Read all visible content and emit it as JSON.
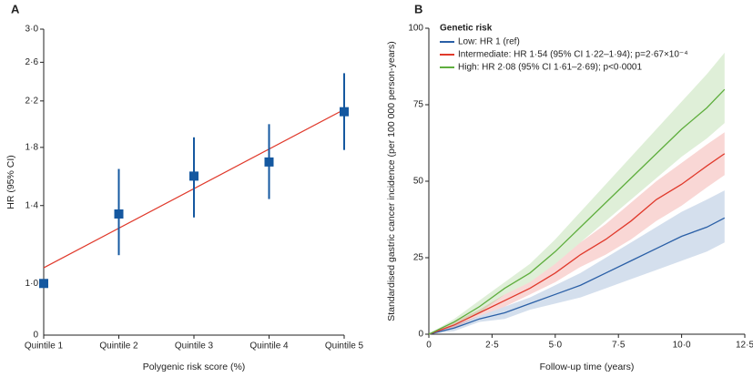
{
  "chart_data": [
    {
      "type": "errorbar",
      "panel_label": "A",
      "y_label": "HR (95% CI)",
      "x_label": "Polygenic risk score (%)",
      "categories": [
        "Quintile 1",
        "Quintile 2",
        "Quintile 3",
        "Quintile 4",
        "Quintile 5"
      ],
      "values": [
        1.0,
        1.35,
        1.59,
        1.69,
        2.1
      ],
      "lower": [
        null,
        1.13,
        1.33,
        1.44,
        1.78
      ],
      "upper": [
        null,
        1.64,
        1.88,
        1.99,
        2.48
      ],
      "color": "#1558a0",
      "trend": {
        "values": [
          1.07,
          2.12
        ],
        "color": "#e0392b"
      },
      "log_y": true,
      "ylim": [
        0.8,
        3.0
      ],
      "y_origin_label": "0",
      "yticks": [
        {
          "value": 1.0,
          "label": "1·0"
        },
        {
          "value": 1.4,
          "label": "1·4"
        },
        {
          "value": 1.8,
          "label": "1·8"
        },
        {
          "value": 2.2,
          "label": "2·2"
        },
        {
          "value": 2.6,
          "label": "2·6"
        },
        {
          "value": 3.0,
          "label": "3·0"
        }
      ]
    },
    {
      "type": "line",
      "panel_label": "B",
      "y_label": "Standardised gastric cancer incidence (per 100 000 person-years)",
      "x_label": "Follow-up time (years)",
      "legend_title": "Genetic risk",
      "legend": "upper left",
      "x": [
        0,
        1,
        2,
        3,
        4,
        5,
        6,
        7,
        8,
        9,
        10,
        11,
        11.7
      ],
      "series": [
        {
          "name": "Low: HR 1 (ref)",
          "color": "#2a5fa6",
          "values": [
            0,
            2,
            5,
            7,
            10,
            13,
            16,
            20,
            24,
            28,
            32,
            35,
            38
          ],
          "upper": [
            0,
            3,
            6,
            9,
            12,
            16,
            20,
            25,
            30,
            35,
            40,
            44,
            47
          ],
          "lower": [
            0,
            1,
            4,
            5,
            8,
            10,
            12,
            15,
            18,
            21,
            24,
            27,
            30
          ]
        },
        {
          "name": "Intermediate: HR 1·54 (95% CI 1·22–1·94); p=2·67×10⁻⁴",
          "color": "#e0392b",
          "values": [
            0,
            3,
            7,
            11,
            15,
            20,
            26,
            31,
            37,
            44,
            49,
            55,
            59
          ],
          "upper": [
            0,
            4,
            8,
            13,
            17,
            23,
            30,
            36,
            43,
            50,
            56,
            62,
            66
          ],
          "lower": [
            0,
            2,
            6,
            9,
            13,
            17,
            22,
            26,
            31,
            37,
            42,
            48,
            52
          ]
        },
        {
          "name": "High: HR 2·08 (95% CI 1·61–2·69); p<0·0001",
          "color": "#5fae3e",
          "values": [
            0,
            4,
            9,
            15,
            20,
            27,
            35,
            43,
            51,
            59,
            67,
            74,
            80
          ],
          "upper": [
            0,
            5,
            11,
            17,
            23,
            31,
            40,
            49,
            58,
            67,
            76,
            85,
            92
          ],
          "lower": [
            0,
            3,
            7,
            13,
            17,
            23,
            30,
            37,
            44,
            51,
            58,
            64,
            69
          ]
        }
      ],
      "xlim": [
        0,
        12.5
      ],
      "xticks": [
        0,
        {
          "value": 2.5,
          "label": "2·5"
        },
        {
          "value": 5.0,
          "label": "5·0"
        },
        {
          "value": 7.5,
          "label": "7·5"
        },
        {
          "value": 10.0,
          "label": "10·0"
        },
        {
          "value": 12.5,
          "label": "12·5"
        }
      ],
      "ylim": [
        0,
        100
      ],
      "yticks": [
        0,
        25,
        50,
        75,
        100
      ]
    }
  ]
}
